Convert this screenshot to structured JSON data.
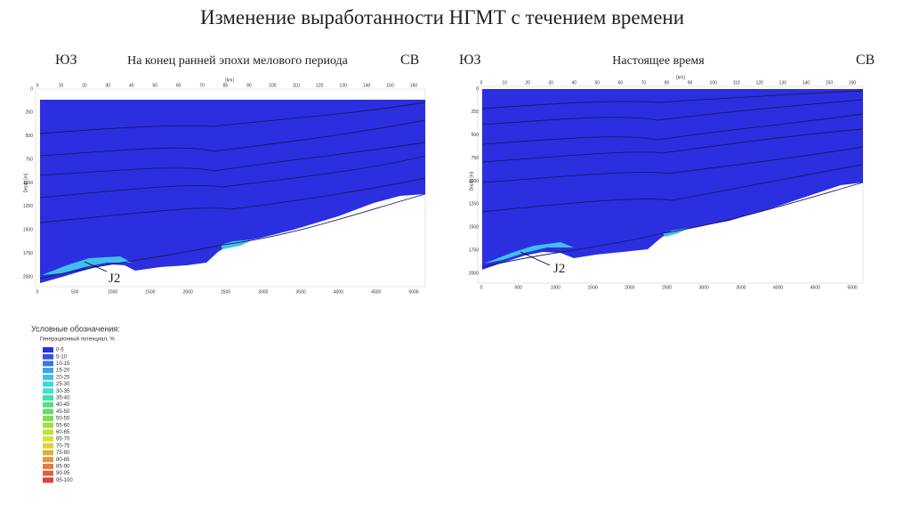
{
  "title": "Изменение выработанности НГМТ с течением времени",
  "panels": [
    {
      "left": "ЮЗ",
      "caption": "На конец ранней эпохи мелового периода",
      "right": "СВ",
      "label": "J2"
    },
    {
      "left": "ЮЗ",
      "caption": "Настоящее время",
      "right": "СВ",
      "label": "J2"
    }
  ],
  "axes": {
    "top_unit": "[km]",
    "top_ticks": [
      0,
      10,
      20,
      30,
      40,
      50,
      60,
      70,
      80,
      90,
      100,
      110,
      120,
      130,
      140,
      150,
      160
    ],
    "depth_label": "Depth [m]",
    "depth_ticks": [
      0,
      250,
      500,
      750,
      1000,
      1250,
      1500,
      1750,
      2000
    ],
    "bottom_ticks": [
      0,
      500,
      1000,
      1500,
      2000,
      2500,
      3000,
      3500,
      4000,
      4500,
      5000
    ]
  },
  "legend": {
    "title": "Условные обозначения:",
    "subtitle": "Генерационный потенциал, %",
    "items": [
      {
        "label": "0-5",
        "color": "#2b2fe0"
      },
      {
        "label": "5-10",
        "color": "#3050e6"
      },
      {
        "label": "10-15",
        "color": "#3a78e8"
      },
      {
        "label": "15-20",
        "color": "#40a0ea"
      },
      {
        "label": "20-25",
        "color": "#40c0e8"
      },
      {
        "label": "25-30",
        "color": "#40d8e0"
      },
      {
        "label": "30-35",
        "color": "#40e0c8"
      },
      {
        "label": "35-40",
        "color": "#40e0a8"
      },
      {
        "label": "40-45",
        "color": "#50e080"
      },
      {
        "label": "45-50",
        "color": "#60e060"
      },
      {
        "label": "50-55",
        "color": "#80e050"
      },
      {
        "label": "55-60",
        "color": "#a0e040"
      },
      {
        "label": "60-65",
        "color": "#c0e040"
      },
      {
        "label": "65-70",
        "color": "#d8e040"
      },
      {
        "label": "70-75",
        "color": "#e0d040"
      },
      {
        "label": "75-80",
        "color": "#e0b040"
      },
      {
        "label": "80-85",
        "color": "#e09840"
      },
      {
        "label": "85-90",
        "color": "#e08040"
      },
      {
        "label": "90-95",
        "color": "#e06040"
      },
      {
        "label": "95-100",
        "color": "#e04040"
      }
    ]
  }
}
